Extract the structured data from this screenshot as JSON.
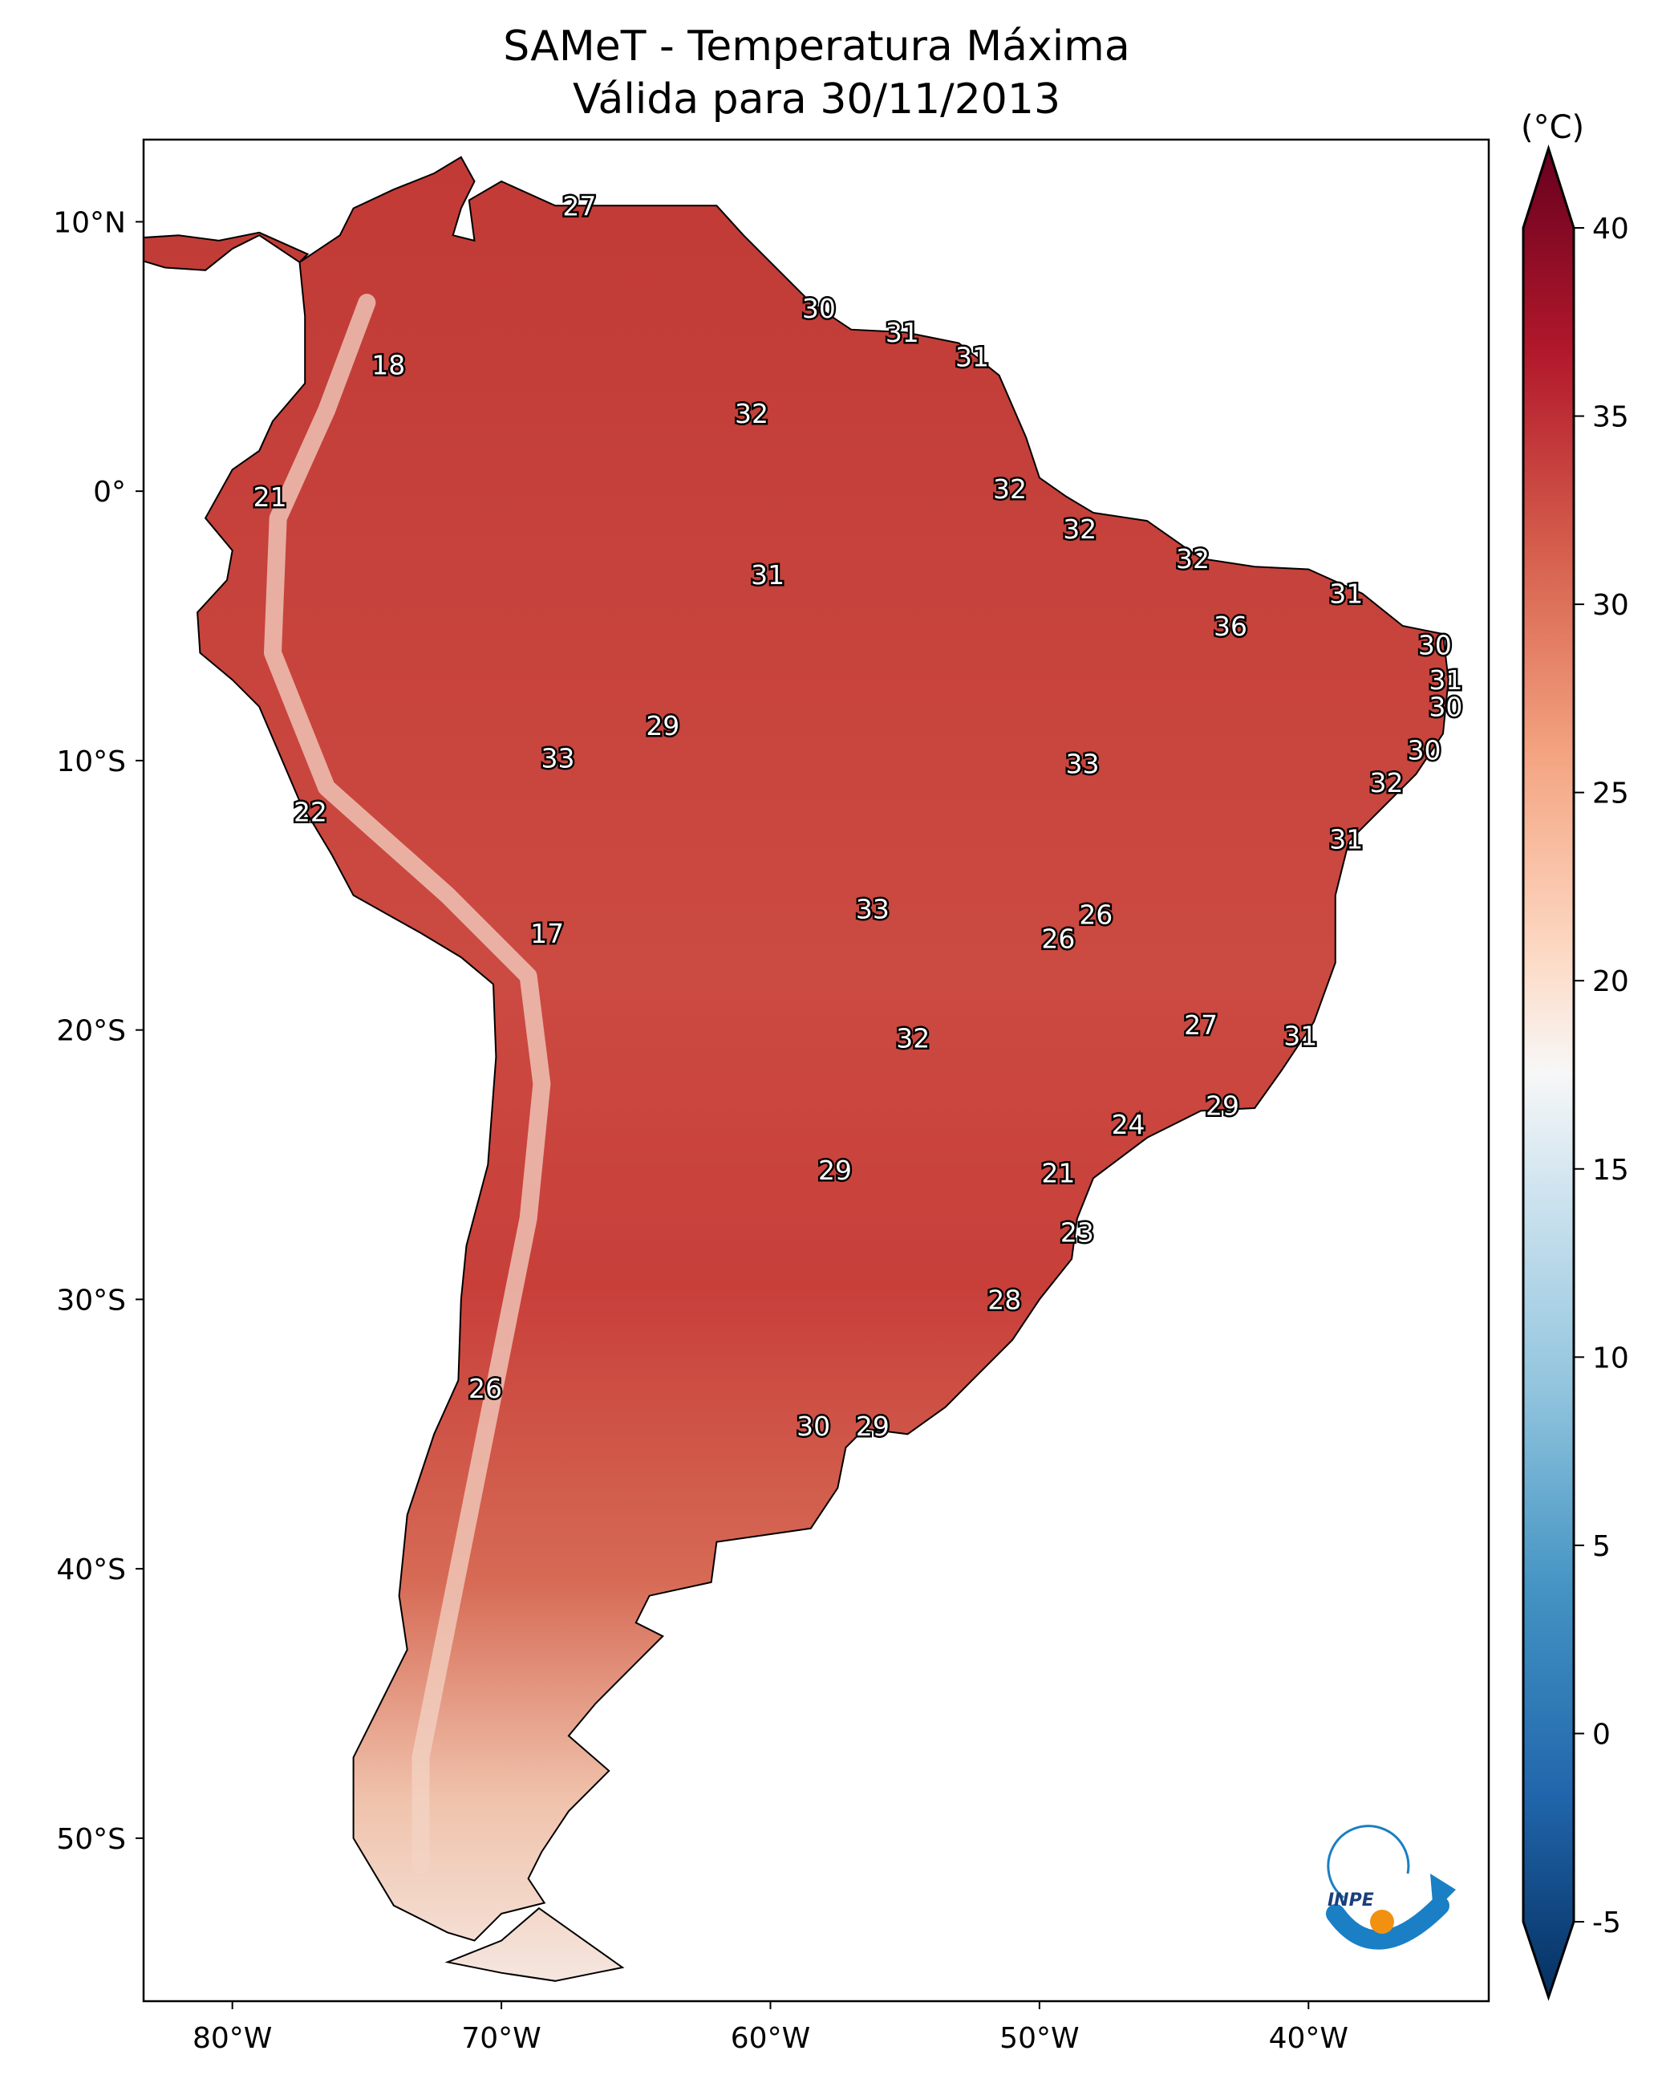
{
  "title": "SAMeT - Temperatura Máxima",
  "subtitle": "Válida para 30/11/2013",
  "colorbar": {
    "unit_label": "(°C)",
    "ticks": [
      "40",
      "35",
      "30",
      "25",
      "20",
      "15",
      "10",
      "5",
      "0",
      "-5"
    ],
    "tick_values": [
      40,
      35,
      30,
      25,
      20,
      15,
      10,
      5,
      0,
      -5
    ],
    "range": [
      -5,
      40
    ],
    "colormap": "RdBu_r"
  },
  "axes": {
    "lon_ticks": [
      "80°W",
      "70°W",
      "60°W",
      "50°W",
      "40°W"
    ],
    "lon_values": [
      -80,
      -70,
      -60,
      -50,
      -40
    ],
    "lat_ticks": [
      "10°N",
      "0°",
      "10°S",
      "20°S",
      "30°S",
      "40°S",
      "50°S"
    ],
    "lat_values": [
      10,
      0,
      -10,
      -20,
      -30,
      -40,
      -50
    ],
    "lon_range": [
      -83.3,
      -33.3
    ],
    "lat_range": [
      -56.05,
      13.05
    ]
  },
  "logo": {
    "text": "INPE",
    "colors": {
      "blue": "#1a7fc4",
      "orange": "#f29111"
    }
  },
  "chart_data": {
    "type": "heatmap",
    "title": "SAMeT - Temperatura Máxima / Válida para 30/11/2013",
    "xlabel": "",
    "ylabel": "",
    "station_labels": [
      {
        "value": "27",
        "lon": -67.1,
        "lat": 10.6
      },
      {
        "value": "30",
        "lon": -58.2,
        "lat": 6.8
      },
      {
        "value": "31",
        "lon": -55.1,
        "lat": 5.9
      },
      {
        "value": "31",
        "lon": -52.5,
        "lat": 5.0
      },
      {
        "value": "18",
        "lon": -74.2,
        "lat": 4.7
      },
      {
        "value": "32",
        "lon": -60.7,
        "lat": 2.9
      },
      {
        "value": "21",
        "lon": -78.6,
        "lat": -0.2
      },
      {
        "value": "32",
        "lon": -51.1,
        "lat": 0.1
      },
      {
        "value": "32",
        "lon": -48.5,
        "lat": -1.4
      },
      {
        "value": "31",
        "lon": -60.1,
        "lat": -3.1
      },
      {
        "value": "32",
        "lon": -44.3,
        "lat": -2.5
      },
      {
        "value": "31",
        "lon": -38.6,
        "lat": -3.8
      },
      {
        "value": "36",
        "lon": -42.9,
        "lat": -5.0
      },
      {
        "value": "30",
        "lon": -35.3,
        "lat": -5.7
      },
      {
        "value": "31",
        "lon": -34.9,
        "lat": -7.0
      },
      {
        "value": "30",
        "lon": -34.9,
        "lat": -8.0
      },
      {
        "value": "29",
        "lon": -64.0,
        "lat": -8.7
      },
      {
        "value": "30",
        "lon": -35.7,
        "lat": -9.6
      },
      {
        "value": "33",
        "lon": -67.9,
        "lat": -9.9
      },
      {
        "value": "33",
        "lon": -48.4,
        "lat": -10.1
      },
      {
        "value": "32",
        "lon": -37.1,
        "lat": -10.8
      },
      {
        "value": "22",
        "lon": -77.1,
        "lat": -11.9
      },
      {
        "value": "31",
        "lon": -38.6,
        "lat": -12.9
      },
      {
        "value": "33",
        "lon": -56.2,
        "lat": -15.5
      },
      {
        "value": "26",
        "lon": -47.9,
        "lat": -15.7
      },
      {
        "value": "17",
        "lon": -68.3,
        "lat": -16.4
      },
      {
        "value": "26",
        "lon": -49.3,
        "lat": -16.6
      },
      {
        "value": "27",
        "lon": -44.0,
        "lat": -19.8
      },
      {
        "value": "31",
        "lon": -40.3,
        "lat": -20.2
      },
      {
        "value": "32",
        "lon": -54.7,
        "lat": -20.3
      },
      {
        "value": "29",
        "lon": -43.2,
        "lat": -22.8
      },
      {
        "value": "24",
        "lon": -46.7,
        "lat": -23.5
      },
      {
        "value": "29",
        "lon": -57.6,
        "lat": -25.2
      },
      {
        "value": "21",
        "lon": -49.3,
        "lat": -25.3
      },
      {
        "value": "23",
        "lon": -48.6,
        "lat": -27.5
      },
      {
        "value": "28",
        "lon": -51.3,
        "lat": -30.0
      },
      {
        "value": "26",
        "lon": -70.6,
        "lat": -33.3
      },
      {
        "value": "30",
        "lon": -58.4,
        "lat": -34.7
      },
      {
        "value": "29",
        "lon": -56.2,
        "lat": -34.7
      }
    ]
  }
}
